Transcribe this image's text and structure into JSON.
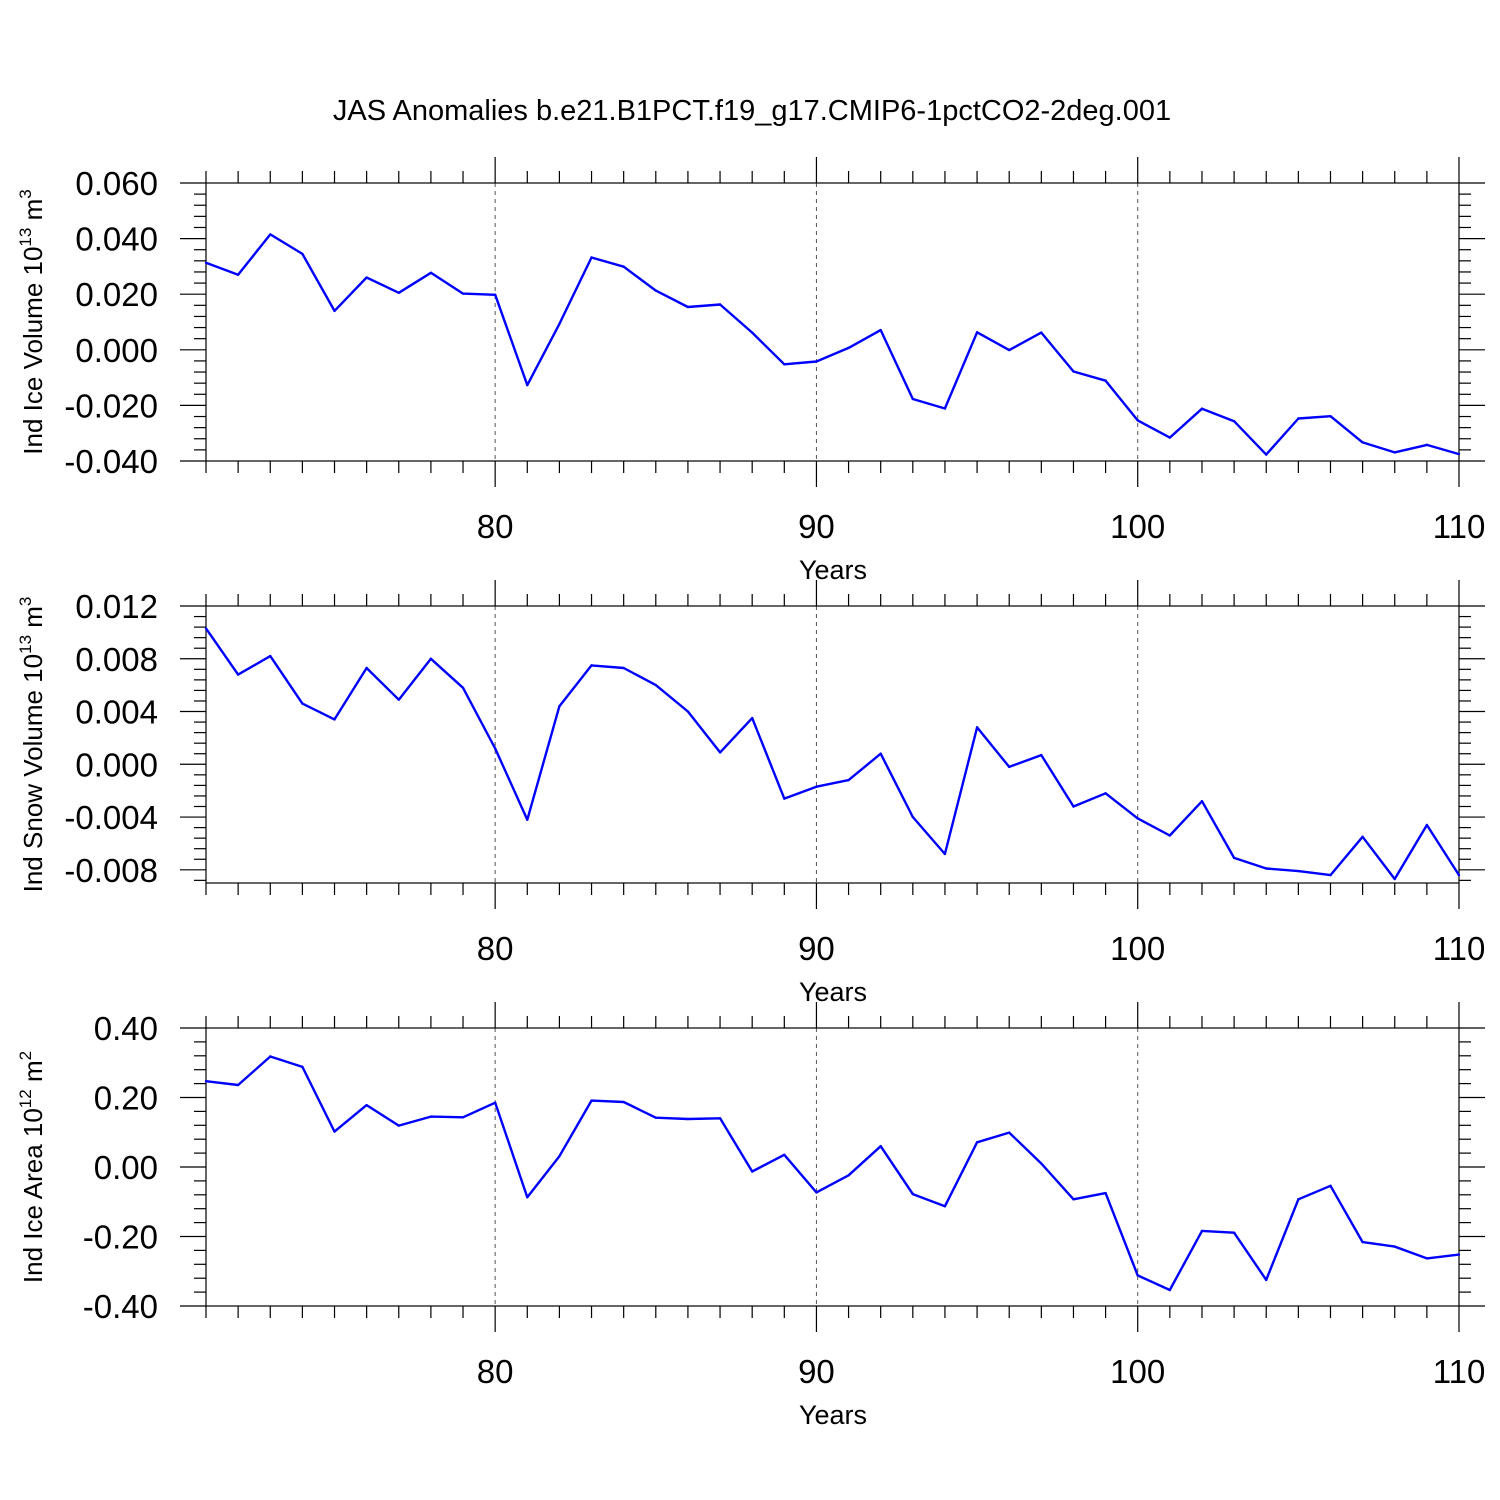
{
  "title": "JAS Anomalies b.e21.B1PCT.f19_g17.CMIP6-1pctCO2-2deg.001",
  "chart_data": [
    {
      "type": "line",
      "ylabel": {
        "pre": "Ind Ice Volume 10",
        "exp": "13",
        "post": " m",
        "unit_exp": "3"
      },
      "xlabel": "Years",
      "xlim": [
        71,
        110
      ],
      "ylim": [
        -0.04,
        0.06
      ],
      "yticks": [
        -0.04,
        -0.02,
        0.0,
        0.02,
        0.04,
        0.06
      ],
      "ytick_labels": [
        "-0.040",
        "-0.020",
        "0.000",
        "0.020",
        "0.040",
        "0.060"
      ],
      "xticks": [
        80,
        90,
        100,
        110
      ],
      "xtick_labels": [
        "80",
        "90",
        "100",
        "110"
      ],
      "grid_x": [
        80,
        90,
        100
      ],
      "color": "#0000ff",
      "x": [
        71,
        72,
        73,
        74,
        75,
        76,
        77,
        78,
        79,
        80,
        81,
        82,
        83,
        84,
        85,
        86,
        87,
        88,
        89,
        90,
        91,
        92,
        93,
        94,
        95,
        96,
        97,
        98,
        99,
        100,
        101,
        102,
        103,
        104,
        105,
        106,
        107,
        108,
        109,
        110
      ],
      "y": [
        0.0313,
        0.027,
        0.0415,
        0.0345,
        0.014,
        0.026,
        0.0205,
        0.0277,
        0.0202,
        0.0198,
        -0.0127,
        0.0093,
        0.0332,
        0.0299,
        0.0213,
        0.0154,
        0.0163,
        0.0062,
        -0.0052,
        -0.0042,
        0.0007,
        0.0071,
        -0.0177,
        -0.0211,
        0.0063,
        -0.0001,
        0.0062,
        -0.0078,
        -0.0111,
        -0.0254,
        -0.0316,
        -0.0212,
        -0.0257,
        -0.0377,
        -0.0247,
        -0.0239,
        -0.0333,
        -0.0369,
        -0.0342,
        -0.0375
      ]
    },
    {
      "type": "line",
      "ylabel": {
        "pre": "Ind Snow Volume 10",
        "exp": "13",
        "post": " m",
        "unit_exp": "3"
      },
      "xlabel": "Years",
      "xlim": [
        71,
        110
      ],
      "ylim": [
        -0.009,
        0.012
      ],
      "yticks": [
        -0.008,
        -0.004,
        0.0,
        0.004,
        0.008,
        0.012
      ],
      "ytick_labels": [
        "-0.008",
        "-0.004",
        "0.000",
        "0.004",
        "0.008",
        "0.012"
      ],
      "xticks": [
        80,
        90,
        100,
        110
      ],
      "xtick_labels": [
        "80",
        "90",
        "100",
        "110"
      ],
      "grid_x": [
        80,
        90,
        100
      ],
      "color": "#0000ff",
      "x": [
        71,
        72,
        73,
        74,
        75,
        76,
        77,
        78,
        79,
        80,
        81,
        82,
        83,
        84,
        85,
        86,
        87,
        88,
        89,
        90,
        91,
        92,
        93,
        94,
        95,
        96,
        97,
        98,
        99,
        100,
        101,
        102,
        103,
        104,
        105,
        106,
        107,
        108,
        109,
        110
      ],
      "y": [
        0.0103,
        0.0068,
        0.0082,
        0.0046,
        0.0034,
        0.0073,
        0.0049,
        0.008,
        0.0058,
        0.0012,
        -0.0042,
        0.0044,
        0.0075,
        0.0073,
        0.006,
        0.004,
        0.0009,
        0.0035,
        -0.0026,
        -0.0017,
        -0.0012,
        0.0008,
        -0.004,
        -0.0068,
        0.0028,
        -0.0002,
        0.0007,
        -0.0032,
        -0.0022,
        -0.0041,
        -0.0054,
        -0.0028,
        -0.0071,
        -0.0079,
        -0.0081,
        -0.0084,
        -0.0055,
        -0.0087,
        -0.0046,
        -0.0084
      ]
    },
    {
      "type": "line",
      "ylabel": {
        "pre": "Ind Ice Area 10",
        "exp": "12",
        "post": " m",
        "unit_exp": "2"
      },
      "xlabel": "Years",
      "xlim": [
        71,
        110
      ],
      "ylim": [
        -0.4,
        0.4
      ],
      "yticks": [
        -0.4,
        -0.2,
        0.0,
        0.2,
        0.4
      ],
      "ytick_labels": [
        "-0.40",
        "-0.20",
        "0.00",
        "0.20",
        "0.40"
      ],
      "xticks": [
        80,
        90,
        100,
        110
      ],
      "xtick_labels": [
        "80",
        "90",
        "100",
        "110"
      ],
      "grid_x": [
        80,
        90,
        100
      ],
      "color": "#0000ff",
      "x": [
        71,
        72,
        73,
        74,
        75,
        76,
        77,
        78,
        79,
        80,
        81,
        82,
        83,
        84,
        85,
        86,
        87,
        88,
        89,
        90,
        91,
        92,
        93,
        94,
        95,
        96,
        97,
        98,
        99,
        100,
        101,
        102,
        103,
        104,
        105,
        106,
        107,
        108,
        109,
        110
      ],
      "y": [
        0.247,
        0.236,
        0.318,
        0.288,
        0.102,
        0.178,
        0.119,
        0.145,
        0.143,
        0.185,
        -0.087,
        0.031,
        0.191,
        0.187,
        0.142,
        0.138,
        0.14,
        -0.013,
        0.035,
        -0.073,
        -0.024,
        0.06,
        -0.078,
        -0.113,
        0.071,
        0.099,
        0.01,
        -0.093,
        -0.075,
        -0.312,
        -0.354,
        -0.184,
        -0.189,
        -0.325,
        -0.093,
        -0.054,
        -0.216,
        -0.229,
        -0.263,
        -0.252
      ]
    }
  ]
}
